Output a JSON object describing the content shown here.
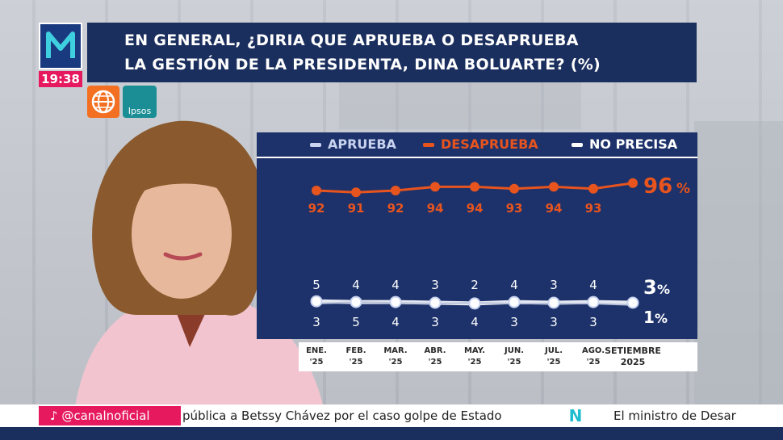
{
  "overlay": {
    "clock": "19:38",
    "title_line1": "EN GENERAL, ¿DIRIA QUE APRUEBA O DESAPRUEBA",
    "title_line2": "LA GESTIÓN DE LA PRESIDENTA, DINA BOLUARTE? (%)",
    "pollster_label": "Ipsos",
    "handle": "@canalnoficial",
    "ticker_1": "pública a Betssy Chávez por el caso golpe de Estado",
    "ticker_logo": "N",
    "ticker_2": "El ministro de Desar"
  },
  "colors": {
    "panel": "#1d326a",
    "desaprueba": "#e8541e",
    "aprueba": "#e6e9f2",
    "accent": "#e6195f"
  },
  "chart_data": {
    "type": "line",
    "categories": [
      "ENE. '25",
      "FEB. '25",
      "MAR. '25",
      "ABR. '25",
      "MAY. '25",
      "JUN. '25",
      "JUL. '25",
      "AGO. '25",
      "SETIEMBRE 2025"
    ],
    "category_lines": [
      [
        "ENE.",
        "'25"
      ],
      [
        "FEB.",
        "'25"
      ],
      [
        "MAR.",
        "'25"
      ],
      [
        "ABR.",
        "'25"
      ],
      [
        "MAY.",
        "'25"
      ],
      [
        "JUN.",
        "'25"
      ],
      [
        "JUL.",
        "'25"
      ],
      [
        "AGO.",
        "'25"
      ],
      [
        "SETIEMBRE",
        "2025"
      ]
    ],
    "series": [
      {
        "name": "DESAPRUEBA",
        "values": [
          92,
          91,
          92,
          94,
          94,
          93,
          94,
          93,
          96
        ],
        "last_label": "96",
        "unit": "%"
      },
      {
        "name": "APRUEBA",
        "values": [
          5,
          4,
          4,
          3,
          2,
          4,
          3,
          4,
          3
        ],
        "last_label": "3",
        "unit": "%"
      },
      {
        "name": "NO PRECISA",
        "values": [
          3,
          5,
          4,
          3,
          4,
          3,
          3,
          3,
          1
        ],
        "last_label": "1",
        "unit": "%"
      }
    ],
    "legend_position": "top",
    "grid": false
  }
}
